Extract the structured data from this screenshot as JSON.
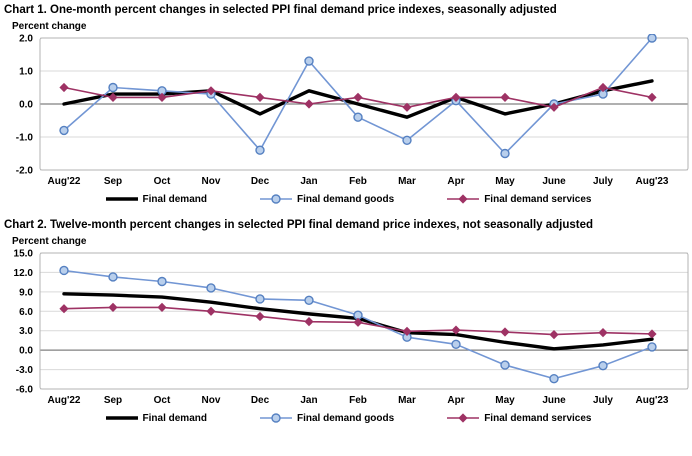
{
  "page": {
    "background": "#ffffff"
  },
  "legend": {
    "items": [
      {
        "label": "Final demand",
        "swatch": "thick-black-line"
      },
      {
        "label": "Final demand goods",
        "swatch": "blue-line-circle-marker"
      },
      {
        "label": "Final demand services",
        "swatch": "maroon-line-diamond-marker"
      }
    ]
  },
  "colors": {
    "final_demand": "#000000",
    "goods_line": "#7296d4",
    "goods_marker_fill": "#b9cfec",
    "goods_marker_stroke": "#5580c1",
    "services": "#9e3264",
    "gridline": "#d9d9d9",
    "zero_line": "#808080",
    "plot_frame": "#b3b3b3"
  },
  "chart_data": [
    {
      "type": "line",
      "title": "Chart 1. One-month percent changes in selected PPI final demand price indexes, seasonally adjusted",
      "ylabel": "Percent change",
      "xlabel": "",
      "categories": [
        "Aug'22",
        "Sep",
        "Oct",
        "Nov",
        "Dec",
        "Jan",
        "Feb",
        "Mar",
        "Apr",
        "May",
        "June",
        "July",
        "Aug'23"
      ],
      "series": [
        {
          "name": "Final demand",
          "values": [
            0.0,
            0.3,
            0.3,
            0.4,
            -0.3,
            0.4,
            0.0,
            -0.4,
            0.2,
            -0.3,
            0.0,
            0.4,
            0.7
          ]
        },
        {
          "name": "Final demand goods",
          "values": [
            -0.8,
            0.5,
            0.4,
            0.3,
            -1.4,
            1.3,
            -0.4,
            -1.1,
            0.1,
            -1.5,
            0.0,
            0.3,
            2.0
          ]
        },
        {
          "name": "Final demand services",
          "values": [
            0.5,
            0.2,
            0.2,
            0.4,
            0.2,
            0.0,
            0.2,
            -0.1,
            0.2,
            0.2,
            -0.1,
            0.5,
            0.2
          ]
        }
      ],
      "ylim": [
        -2.0,
        2.0
      ],
      "ytick_step": 1.0,
      "y_ticks": [
        "2.0",
        "1.0",
        "0.0",
        "-1.0",
        "-2.0"
      ],
      "grid": true,
      "legend_position": "bottom"
    },
    {
      "type": "line",
      "title": "Chart 2. Twelve-month percent changes in selected PPI final demand price indexes, not seasonally adjusted",
      "ylabel": "Percent change",
      "xlabel": "",
      "categories": [
        "Aug'22",
        "Sep",
        "Oct",
        "Nov",
        "Dec",
        "Jan",
        "Feb",
        "Mar",
        "Apr",
        "May",
        "June",
        "July",
        "Aug'23"
      ],
      "series": [
        {
          "name": "Final demand",
          "values": [
            8.7,
            8.5,
            8.2,
            7.4,
            6.4,
            5.6,
            4.9,
            2.7,
            2.4,
            1.2,
            0.2,
            0.8,
            1.7
          ]
        },
        {
          "name": "Final demand goods",
          "values": [
            12.3,
            11.3,
            10.6,
            9.6,
            7.9,
            7.7,
            5.4,
            2.0,
            0.9,
            -2.3,
            -4.4,
            -2.4,
            0.5
          ]
        },
        {
          "name": "Final demand services",
          "values": [
            6.4,
            6.6,
            6.6,
            6.0,
            5.2,
            4.4,
            4.3,
            2.9,
            3.1,
            2.8,
            2.4,
            2.7,
            2.5
          ]
        }
      ],
      "ylim": [
        -6.0,
        15.0
      ],
      "ytick_step": 3.0,
      "y_ticks": [
        "15.0",
        "12.0",
        "9.0",
        "6.0",
        "3.0",
        "0.0",
        "-3.0",
        "-6.0"
      ],
      "grid": true,
      "legend_position": "bottom"
    }
  ]
}
